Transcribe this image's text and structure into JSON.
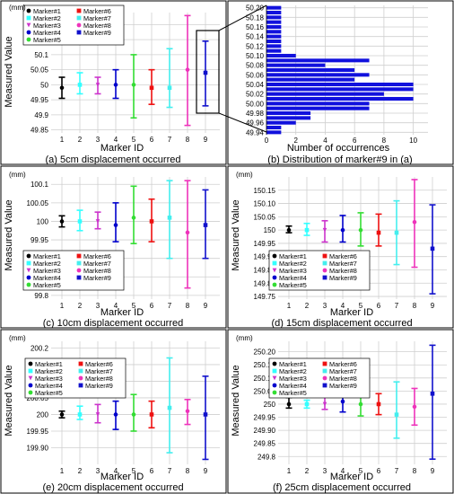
{
  "colors": {
    "M1": "#000000",
    "M2": "#33ffff",
    "M3": "#cc33cc",
    "M4": "#0000cc",
    "M5": "#33dd33",
    "M6": "#ee1111",
    "M7": "#44eeee",
    "M8": "#ee33bb",
    "M9": "#1111cc",
    "hist": "#1111dd"
  },
  "chart_data": [
    {
      "id": "a",
      "type": "errorbar",
      "caption": "(a) 5cm displacement occurred",
      "unit": "(mm)",
      "ylabel": "Measured Value",
      "xlabel": "Marker ID",
      "ylim": [
        49.84,
        50.24
      ],
      "yticks": [
        49.85,
        49.9,
        49.95,
        50,
        50.05,
        50.1,
        50.15,
        50.2
      ],
      "yticklabels": [
        "49.85",
        "49.9",
        "49.95",
        "50",
        "50.05",
        "50.1",
        "50.15",
        "50.2"
      ],
      "x": [
        1,
        2,
        3,
        4,
        5,
        6,
        7,
        8,
        9
      ],
      "mean": [
        49.99,
        50.0,
        50.0,
        50.0,
        50.0,
        49.99,
        49.99,
        50.05,
        50.04
      ],
      "low": [
        49.955,
        49.97,
        49.97,
        49.955,
        49.89,
        49.935,
        49.925,
        49.865,
        49.93
      ],
      "high": [
        50.025,
        50.04,
        50.025,
        50.05,
        50.1,
        50.05,
        50.12,
        50.23,
        50.145
      ],
      "legend": [
        "Marker#1",
        "Marker#2",
        "Marker#3",
        "Marker#4",
        "Marker#5",
        "Marker#6",
        "Marker#7",
        "Marker#8",
        "Marker#9"
      ]
    },
    {
      "id": "b",
      "type": "bar",
      "caption": "(b) Distribution of marker#9 in (a)",
      "xlabel": "Number of occurrences",
      "ylim": [
        49.935,
        50.205
      ],
      "yticks": [
        49.94,
        49.96,
        49.98,
        50.0,
        50.02,
        50.04,
        50.06,
        50.08,
        50.1,
        50.12,
        50.14,
        50.16,
        50.18,
        50.2
      ],
      "yticklabels": [
        "49.94",
        "49.96",
        "49.98",
        "50.00",
        "50.02",
        "50.04",
        "50.06",
        "50.08",
        "50.10",
        "50.12",
        "50.14",
        "50.16",
        "50.18",
        "50.20"
      ],
      "xlim": [
        0,
        11
      ],
      "xticks": [
        0,
        2,
        4,
        6,
        8,
        10
      ],
      "xticklabels": [
        "0",
        "2",
        "4",
        "6",
        "8",
        "10"
      ],
      "bins": [
        49.94,
        49.95,
        49.96,
        49.97,
        49.98,
        49.99,
        50.0,
        50.01,
        50.02,
        50.03,
        50.04,
        50.05,
        50.06,
        50.07,
        50.08,
        50.09,
        50.1,
        50.11,
        50.12,
        50.13,
        50.14,
        50.15,
        50.16,
        50.17,
        50.18,
        50.19,
        50.2
      ],
      "counts": [
        1,
        1,
        2,
        3,
        3,
        7,
        7,
        10,
        8,
        10,
        10,
        6,
        7,
        6,
        4,
        7,
        2,
        1,
        1,
        1,
        1,
        1,
        1,
        1,
        1,
        1,
        1
      ]
    },
    {
      "id": "c",
      "type": "errorbar",
      "caption": "(c) 10cm displacement occurred",
      "unit": "(mm)",
      "ylabel": "Measured Value",
      "xlabel": "Marker ID",
      "ylim": [
        99.79,
        100.12
      ],
      "yticks": [
        99.8,
        99.85,
        99.9,
        99.95,
        100,
        100.05,
        100.1
      ],
      "yticklabels": [
        "99.8",
        "99.85",
        "99.9",
        "99.95",
        "100",
        "100.05",
        "100.1"
      ],
      "x": [
        1,
        2,
        3,
        4,
        5,
        6,
        7,
        8,
        9
      ],
      "mean": [
        100.0,
        100.0,
        100.0,
        99.99,
        100.01,
        100.0,
        100.01,
        99.97,
        99.99
      ],
      "low": [
        99.985,
        99.975,
        99.98,
        99.945,
        99.94,
        99.945,
        99.9,
        99.82,
        99.9
      ],
      "high": [
        100.015,
        100.03,
        100.025,
        100.05,
        100.095,
        100.06,
        100.11,
        100.11,
        100.085
      ],
      "legend": [
        "Marker#1",
        "Marker#2",
        "Marker#3",
        "Marker#4",
        "Marker#5",
        "Marker#6",
        "Marker#7",
        "Marker#8",
        "Marker#9"
      ]
    },
    {
      "id": "d",
      "type": "errorbar",
      "caption": "(d) 15cm displacement occurred",
      "unit": "(mm)",
      "ylabel": "Measured Value",
      "xlabel": "Marker ID",
      "ylim": [
        149.74,
        150.2
      ],
      "yticks": [
        149.75,
        149.8,
        149.85,
        149.9,
        149.95,
        150,
        150.05,
        150.1,
        150.15
      ],
      "yticklabels": [
        "149.75",
        "149.80",
        "149.85",
        "149.90",
        "149.95",
        "150",
        "150.05",
        "150.10",
        "150.15"
      ],
      "x": [
        1,
        2,
        3,
        4,
        5,
        6,
        7,
        8,
        9
      ],
      "mean": [
        150.0,
        150.0,
        150.0,
        150.0,
        150.0,
        149.99,
        149.99,
        150.03,
        149.93
      ],
      "low": [
        149.99,
        149.98,
        149.955,
        149.955,
        149.94,
        149.94,
        149.87,
        149.86,
        149.76
      ],
      "high": [
        150.015,
        150.025,
        150.035,
        150.055,
        150.065,
        150.06,
        150.11,
        150.19,
        150.095
      ],
      "legend": [
        "Marker#1",
        "Marker#2",
        "Marker#3",
        "Marker#4",
        "Marker#5",
        "Marker#6",
        "Marker#7",
        "Marker#8",
        "Marker#9"
      ]
    },
    {
      "id": "e",
      "type": "errorbar",
      "caption": "(e) 20cm displacement occurred",
      "unit": "(mm)",
      "ylabel": "Measured Value",
      "xlabel": "Marker ID",
      "ylim": [
        199.85,
        200.22
      ],
      "yticks": [
        199.9,
        199.95,
        200,
        200.05,
        200.1,
        200.15,
        200.2
      ],
      "yticklabels": [
        "199.90",
        "199.95",
        "200",
        "200.05",
        "200.1",
        "200.15",
        "200.2"
      ],
      "x": [
        1,
        2,
        3,
        4,
        5,
        6,
        7,
        8,
        9
      ],
      "mean": [
        200.0,
        200.0,
        200.0,
        200.0,
        200.0,
        200.0,
        200.02,
        200.01,
        200.0
      ],
      "low": [
        199.99,
        199.985,
        199.975,
        199.955,
        199.95,
        199.96,
        199.885,
        199.97,
        199.865
      ],
      "high": [
        200.01,
        200.025,
        200.03,
        200.04,
        200.06,
        200.04,
        200.17,
        200.045,
        200.115
      ],
      "legend": [
        "Marker#1",
        "Marker#2",
        "Marker#3",
        "Marker#4",
        "Marker#5",
        "Marker#6",
        "Marker#7",
        "Marker#8",
        "Marker#9"
      ]
    },
    {
      "id": "f",
      "type": "errorbar",
      "caption": "(f) 25cm displacement occurred",
      "unit": "(mm)",
      "ylabel": "Measured Value",
      "xlabel": "Marker ID",
      "ylim": [
        249.77,
        250.24
      ],
      "yticks": [
        249.8,
        249.85,
        249.9,
        249.95,
        250,
        250.05,
        250.1,
        250.15,
        250.2
      ],
      "yticklabels": [
        "249.8",
        "249.85",
        "249.90",
        "249.95",
        "250",
        "250.05",
        "250.10",
        "250.15",
        "250.20"
      ],
      "x": [
        1,
        2,
        3,
        4,
        5,
        6,
        7,
        8,
        9
      ],
      "mean": [
        250.0,
        250.0,
        250.0,
        250.01,
        250.0,
        250.0,
        249.96,
        249.99,
        250.04
      ],
      "low": [
        249.985,
        249.985,
        249.98,
        249.97,
        249.955,
        249.96,
        249.87,
        249.92,
        249.79
      ],
      "high": [
        250.025,
        250.015,
        250.03,
        250.055,
        250.045,
        250.04,
        250.085,
        250.06,
        250.225
      ],
      "legend": [
        "Marker#1",
        "Marker#2",
        "Marker#3",
        "Marker#4",
        "Marker#5",
        "Marker#6",
        "Marker#7",
        "Marker#8",
        "Marker#9"
      ]
    }
  ]
}
